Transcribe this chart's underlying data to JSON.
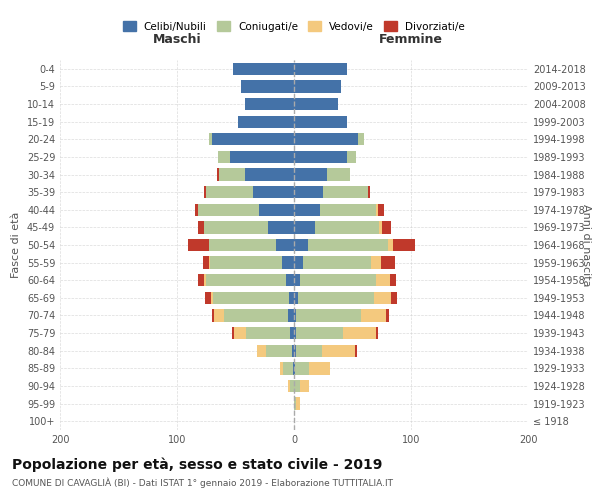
{
  "age_groups": [
    "100+",
    "95-99",
    "90-94",
    "85-89",
    "80-84",
    "75-79",
    "70-74",
    "65-69",
    "60-64",
    "55-59",
    "50-54",
    "45-49",
    "40-44",
    "35-39",
    "30-34",
    "25-29",
    "20-24",
    "15-19",
    "10-14",
    "5-9",
    "0-4"
  ],
  "birth_years": [
    "≤ 1918",
    "1919-1923",
    "1924-1928",
    "1929-1933",
    "1934-1938",
    "1939-1943",
    "1944-1948",
    "1949-1953",
    "1954-1958",
    "1959-1963",
    "1964-1968",
    "1969-1973",
    "1974-1978",
    "1979-1983",
    "1984-1988",
    "1989-1993",
    "1994-1998",
    "1999-2003",
    "2004-2008",
    "2009-2013",
    "2014-2018"
  ],
  "maschi": {
    "celibi": [
      0,
      0,
      0,
      1,
      2,
      3,
      5,
      4,
      7,
      10,
      15,
      22,
      30,
      35,
      42,
      55,
      70,
      48,
      42,
      45,
      52
    ],
    "coniugati": [
      0,
      0,
      3,
      8,
      22,
      38,
      55,
      65,
      68,
      62,
      58,
      55,
      52,
      40,
      22,
      10,
      3,
      0,
      0,
      0,
      0
    ],
    "vedovi": [
      0,
      0,
      2,
      3,
      8,
      10,
      8,
      2,
      2,
      1,
      0,
      0,
      0,
      0,
      0,
      0,
      0,
      0,
      0,
      0,
      0
    ],
    "divorziati": [
      0,
      0,
      0,
      0,
      0,
      2,
      2,
      5,
      5,
      5,
      18,
      5,
      3,
      2,
      2,
      0,
      0,
      0,
      0,
      0,
      0
    ]
  },
  "femmine": {
    "nubili": [
      0,
      0,
      0,
      1,
      2,
      2,
      2,
      3,
      5,
      8,
      12,
      18,
      22,
      25,
      28,
      45,
      55,
      45,
      38,
      40,
      45
    ],
    "coniugate": [
      0,
      2,
      5,
      12,
      22,
      40,
      55,
      65,
      65,
      58,
      68,
      55,
      48,
      38,
      20,
      8,
      5,
      0,
      0,
      0,
      0
    ],
    "vedove": [
      0,
      3,
      8,
      18,
      28,
      28,
      22,
      15,
      12,
      8,
      5,
      2,
      2,
      0,
      0,
      0,
      0,
      0,
      0,
      0,
      0
    ],
    "divorziate": [
      0,
      0,
      0,
      0,
      2,
      2,
      2,
      5,
      5,
      12,
      18,
      8,
      5,
      2,
      0,
      0,
      0,
      0,
      0,
      0,
      0
    ]
  },
  "colors": {
    "celibi": "#4472a8",
    "coniugati": "#b5c99a",
    "vedovi": "#f4c97e",
    "divorziati": "#c0392b"
  },
  "title": "Popolazione per età, sesso e stato civile - 2019",
  "subtitle": "COMUNE DI CAVAGLIÀ (BI) - Dati ISTAT 1° gennaio 2019 - Elaborazione TUTTITALIA.IT",
  "xlabel_left": "Maschi",
  "xlabel_right": "Femmine",
  "ylabel_left": "Fasce di età",
  "ylabel_right": "Anni di nascita",
  "xlim": 200,
  "legend_labels": [
    "Celibi/Nubili",
    "Coniugati/e",
    "Vedovi/e",
    "Divorziati/e"
  ]
}
